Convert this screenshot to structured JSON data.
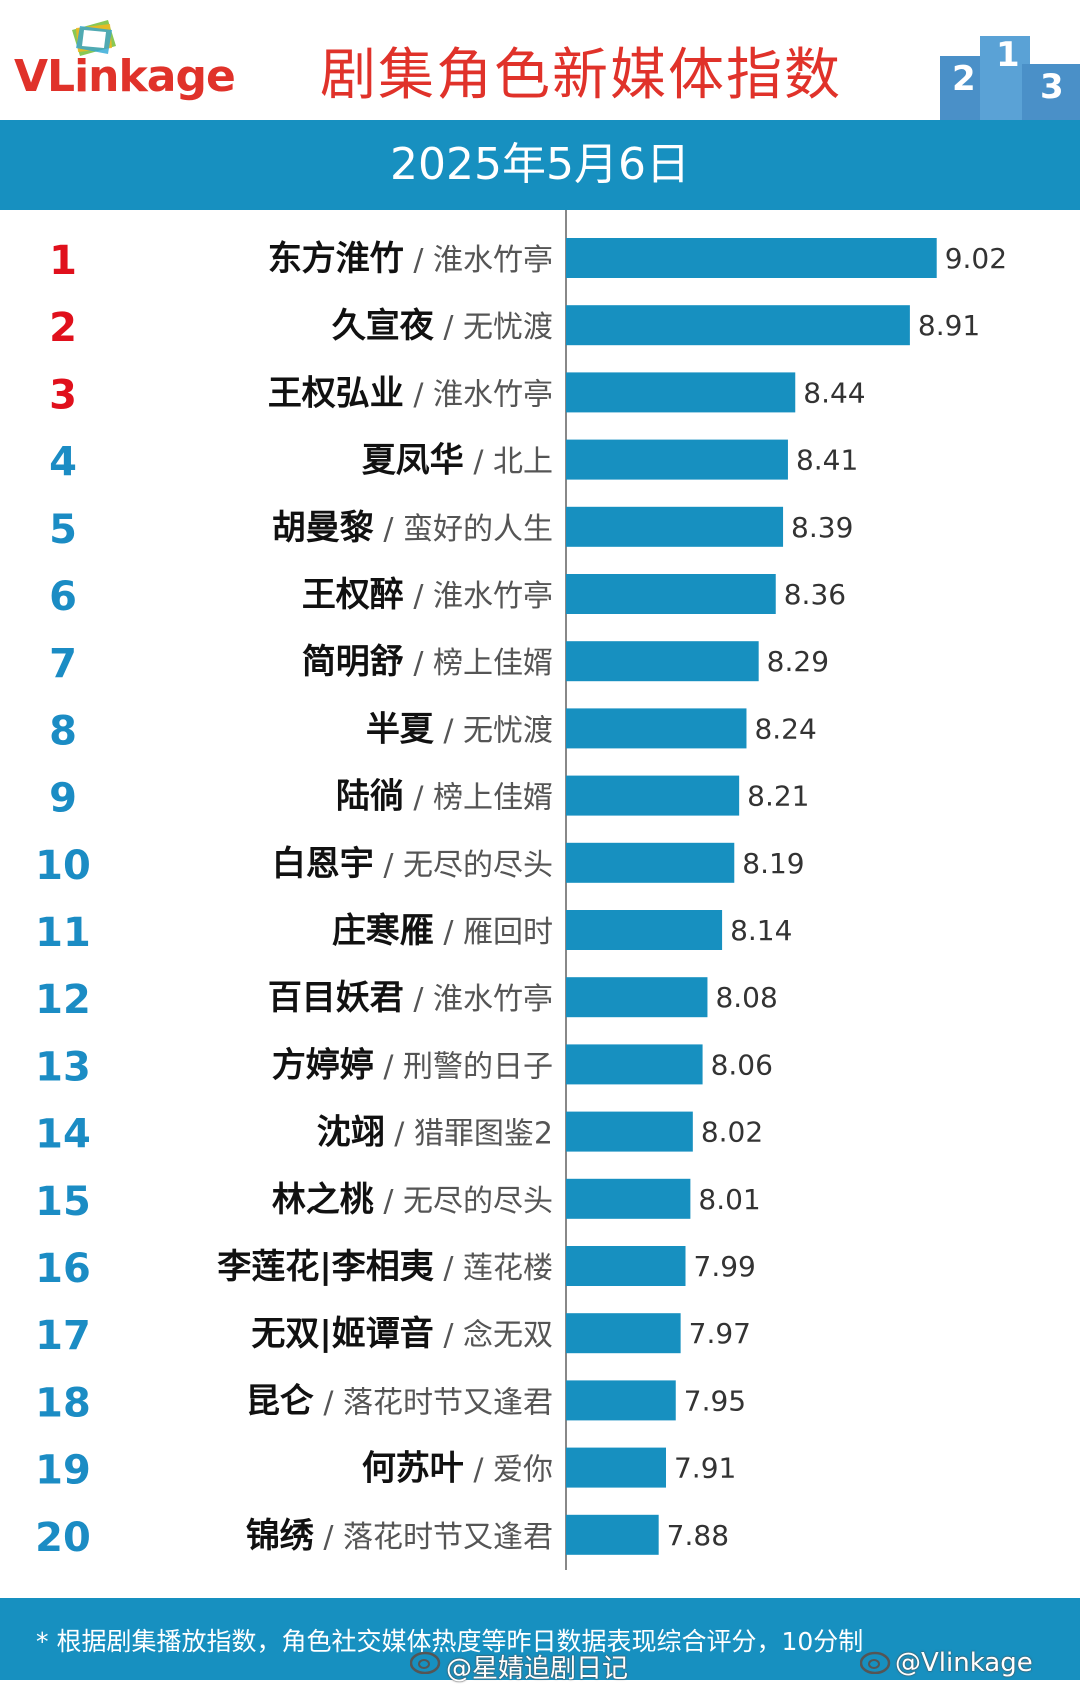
{
  "header": {
    "logo_text": "VLinkage",
    "title": "剧集角色新媒体指数",
    "podium_icon": "podium-icon"
  },
  "date": "2025年5月6日",
  "colors": {
    "bar": "#1790c0",
    "top3_rank": "#e0101c",
    "rank": "#1b8cc4",
    "title_red": "#e0322a",
    "band": "#1790c0"
  },
  "chart_data": {
    "type": "bar",
    "orientation": "horizontal",
    "xlim": [
      7.5,
      9.3
    ],
    "rows": [
      {
        "rank": "1",
        "name": "东方淮竹",
        "drama": "淮水竹亭",
        "value": 9.02,
        "label": "9.02"
      },
      {
        "rank": "2",
        "name": "久宣夜",
        "drama": "无忧渡",
        "value": 8.91,
        "label": "8.91"
      },
      {
        "rank": "3",
        "name": "王权弘业",
        "drama": "淮水竹亭",
        "value": 8.44,
        "label": "8.44"
      },
      {
        "rank": "4",
        "name": "夏凤华",
        "drama": "北上",
        "value": 8.41,
        "label": "8.41"
      },
      {
        "rank": "5",
        "name": "胡曼黎",
        "drama": "蛮好的人生",
        "value": 8.39,
        "label": "8.39"
      },
      {
        "rank": "6",
        "name": "王权醉",
        "drama": "淮水竹亭",
        "value": 8.36,
        "label": "8.36"
      },
      {
        "rank": "7",
        "name": "简明舒",
        "drama": "榜上佳婿",
        "value": 8.29,
        "label": "8.29"
      },
      {
        "rank": "8",
        "name": "半夏",
        "drama": "无忧渡",
        "value": 8.24,
        "label": "8.24"
      },
      {
        "rank": "9",
        "name": "陆徜",
        "drama": "榜上佳婿",
        "value": 8.21,
        "label": "8.21"
      },
      {
        "rank": "10",
        "name": "白恩宇",
        "drama": "无尽的尽头",
        "value": 8.19,
        "label": "8.19"
      },
      {
        "rank": "11",
        "name": "庄寒雁",
        "drama": "雁回时",
        "value": 8.14,
        "label": "8.14"
      },
      {
        "rank": "12",
        "name": "百目妖君",
        "drama": "淮水竹亭",
        "value": 8.08,
        "label": "8.08"
      },
      {
        "rank": "13",
        "name": "方婷婷",
        "drama": "刑警的日子",
        "value": 8.06,
        "label": "8.06"
      },
      {
        "rank": "14",
        "name": "沈翊",
        "drama": "猎罪图鉴2",
        "value": 8.02,
        "label": "8.02"
      },
      {
        "rank": "15",
        "name": "林之桃",
        "drama": "无尽的尽头",
        "value": 8.01,
        "label": "8.01"
      },
      {
        "rank": "16",
        "name": "李莲花|李相夷",
        "drama": "莲花楼",
        "value": 7.99,
        "label": "7.99"
      },
      {
        "rank": "17",
        "name": "无双|姬谭音",
        "drama": "念无双",
        "value": 7.97,
        "label": "7.97"
      },
      {
        "rank": "18",
        "name": "昆仑",
        "drama": "落花时节又逢君",
        "value": 7.95,
        "label": "7.95"
      },
      {
        "rank": "19",
        "name": "何苏叶",
        "drama": "爱你",
        "value": 7.91,
        "label": "7.91"
      },
      {
        "rank": "20",
        "name": "锦绣",
        "drama": "落花时节又逢君",
        "value": 7.88,
        "label": "7.88"
      }
    ]
  },
  "footer": {
    "note": "* 根据剧集播放指数，角色社交媒体热度等昨日数据表现综合评分，10分制",
    "watermark_left": "@星婧追剧日记",
    "watermark_right": "@Vlinkage"
  }
}
